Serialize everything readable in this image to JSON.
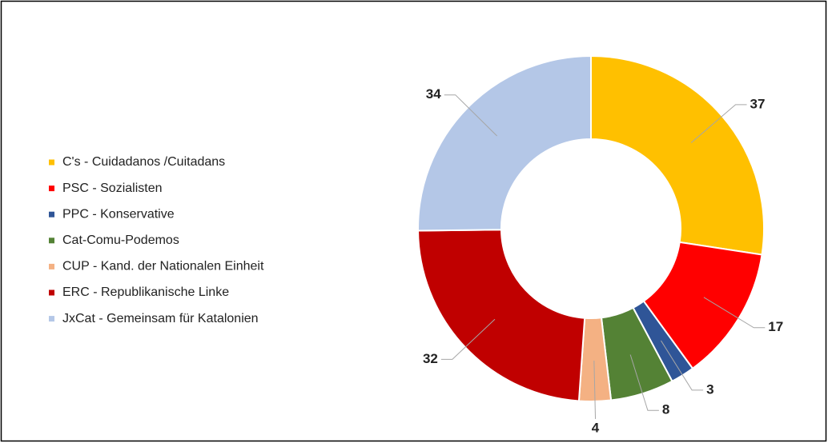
{
  "chart_data": {
    "type": "donut",
    "categories": [
      "C's - Cuidadanos /Cuitadans",
      "PSC - Sozialisten",
      "PPC - Konservative",
      "Cat-Comu-Podemos",
      "CUP - Kand. der Nationalen Einheit",
      "ERC - Republikanische Linke",
      "JxCat - Gemeinsam für Katalonien"
    ],
    "values": [
      37,
      17,
      3,
      8,
      4,
      32,
      34
    ],
    "colors": [
      "#ffc000",
      "#ff0000",
      "#2f5597",
      "#548235",
      "#f4b183",
      "#c00000",
      "#b4c7e7"
    ],
    "legend": "left"
  }
}
